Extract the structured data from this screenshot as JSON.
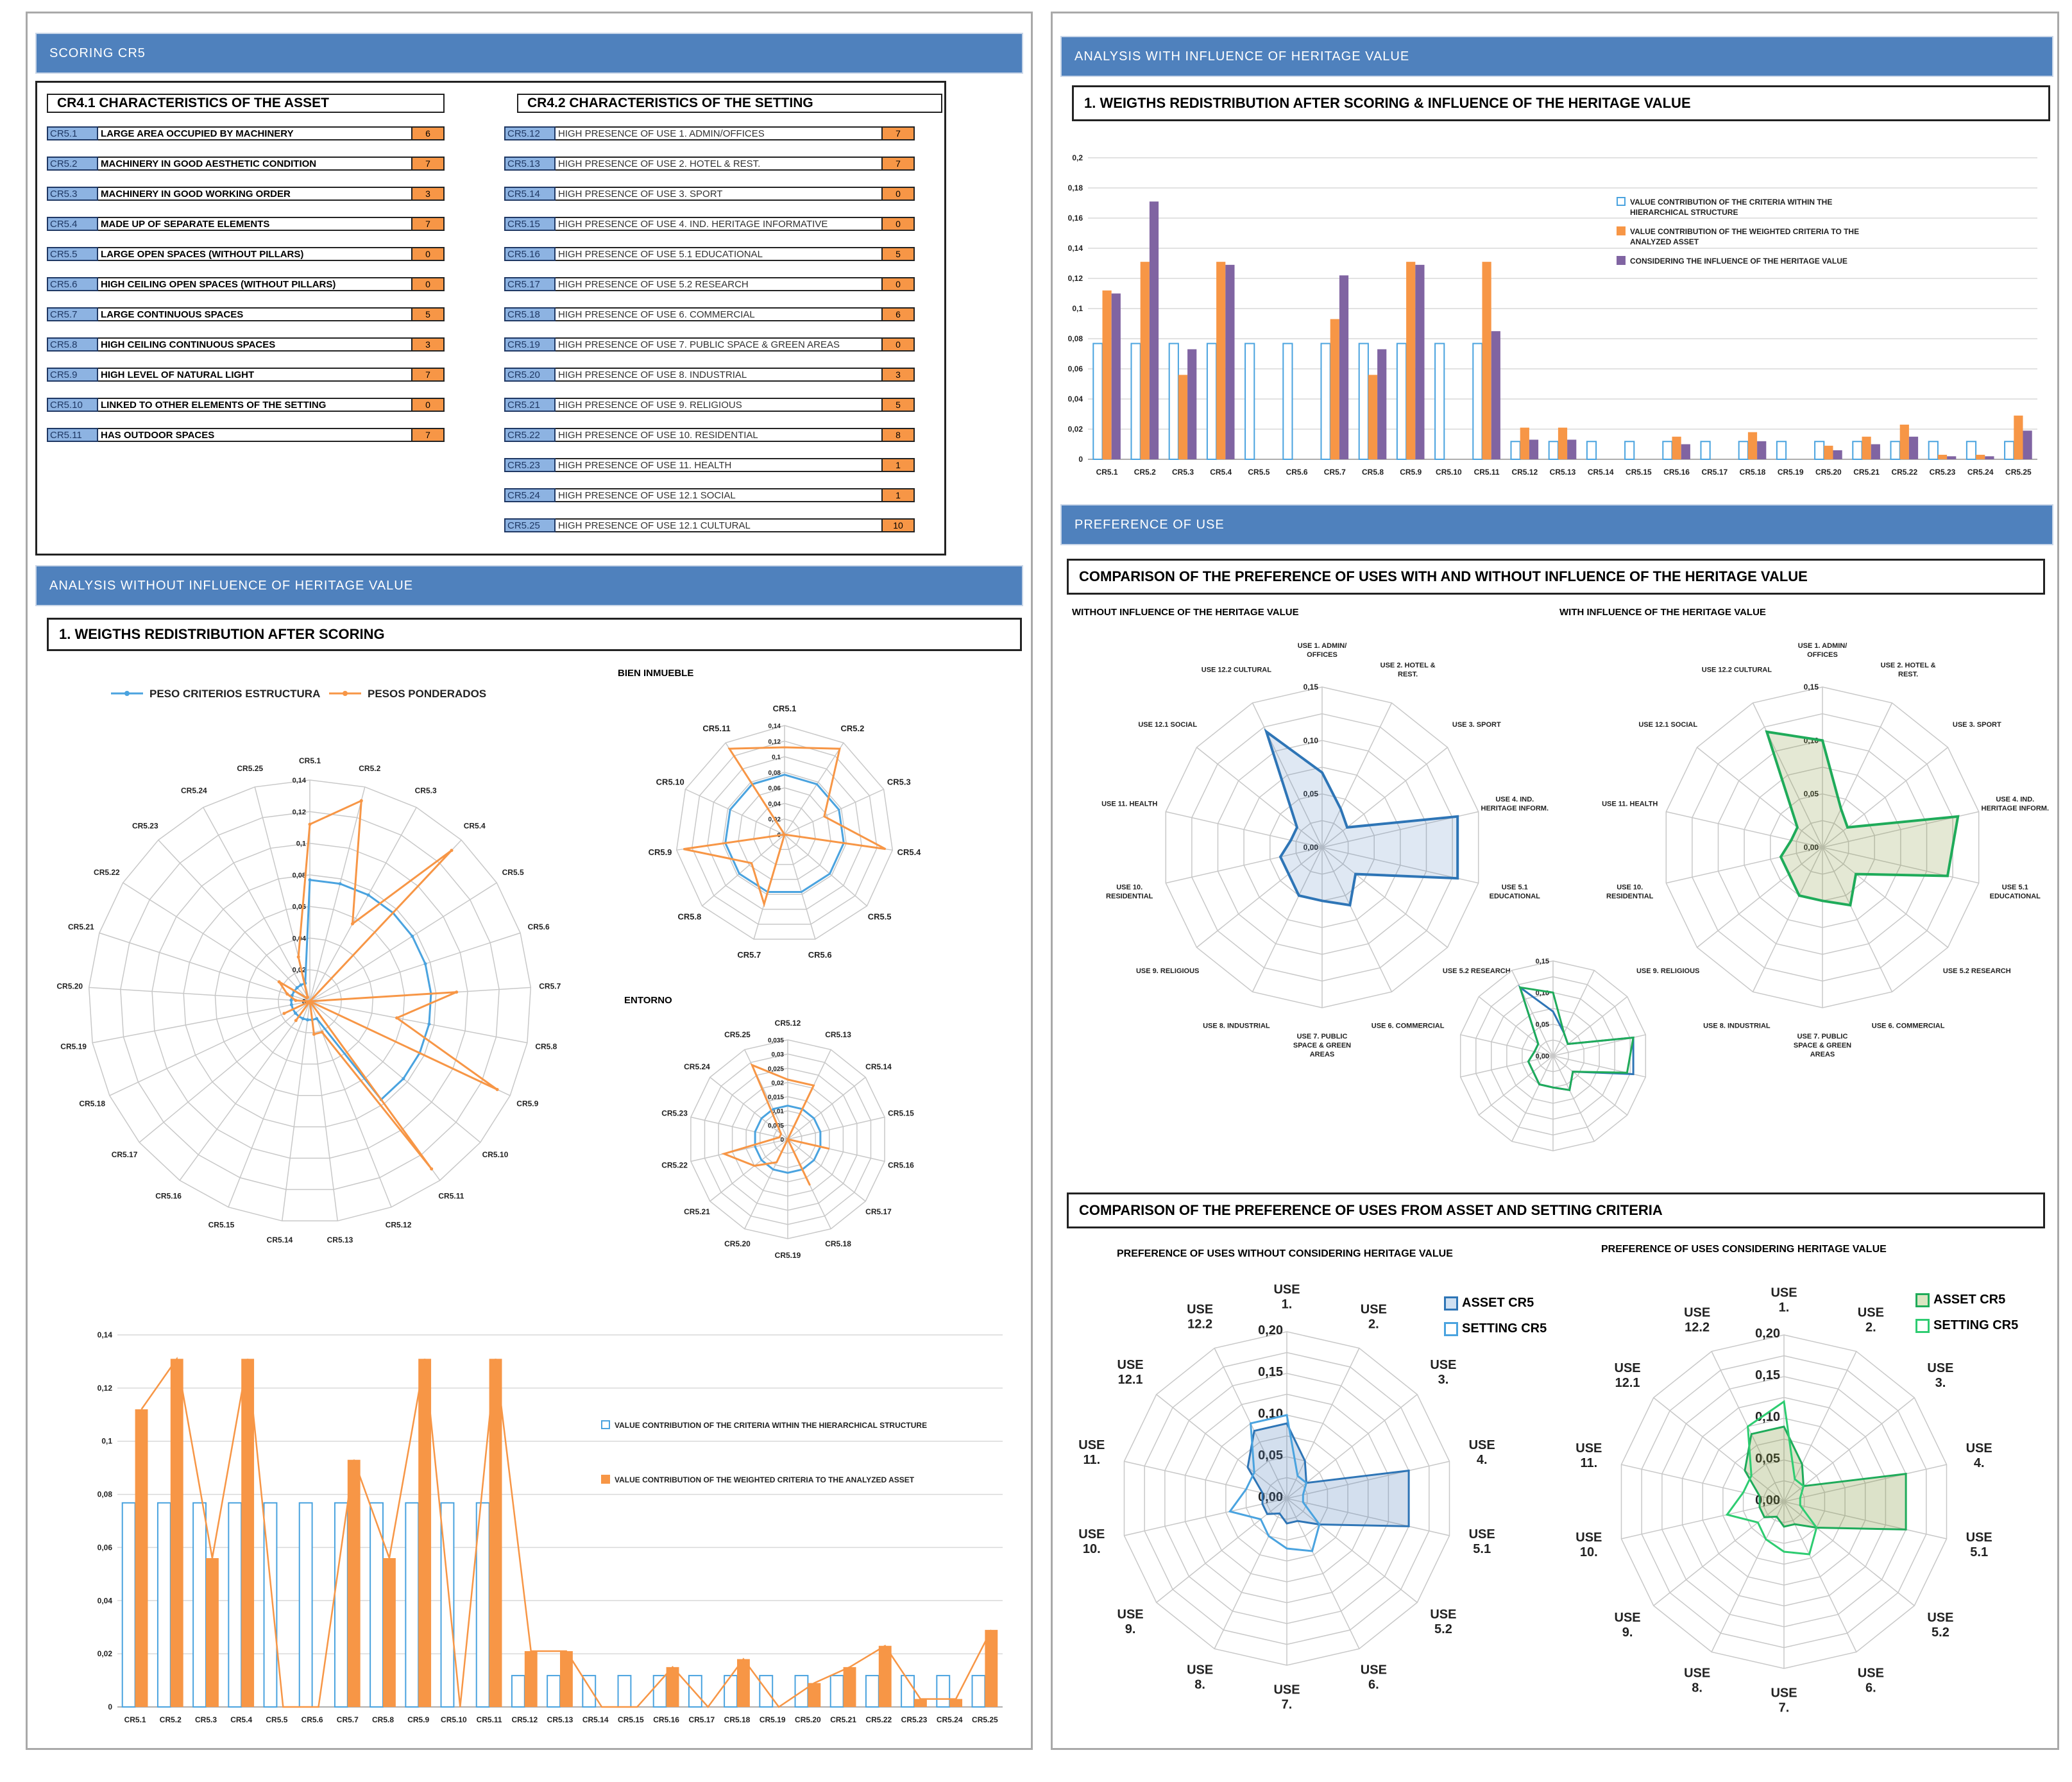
{
  "left": {
    "scoring_header": "SCORING CR5",
    "asset_title": "CR4.1  CHARACTERISTICS OF THE ASSET",
    "setting_title": "CR4.2  CHARACTERISTICS OF THE SETTING",
    "asset_rows": [
      {
        "code": "CR5.1",
        "label": "LARGE AREA OCCUPIED BY MACHINERY",
        "value": "6"
      },
      {
        "code": "CR5.2",
        "label": "MACHINERY IN GOOD AESTHETIC CONDITION",
        "value": "7"
      },
      {
        "code": "CR5.3",
        "label": "MACHINERY IN GOOD WORKING ORDER",
        "value": "3"
      },
      {
        "code": "CR5.4",
        "label": "MADE UP OF SEPARATE ELEMENTS",
        "value": "7"
      },
      {
        "code": "CR5.5",
        "label": "LARGE OPEN SPACES (WITHOUT PILLARS)",
        "value": "0"
      },
      {
        "code": "CR5.6",
        "label": "HIGH CEILING OPEN SPACES (WITHOUT PILLARS)",
        "value": "0"
      },
      {
        "code": "CR5.7",
        "label": "LARGE CONTINUOUS SPACES",
        "value": "5"
      },
      {
        "code": "CR5.8",
        "label": "HIGH CEILING CONTINUOUS SPACES",
        "value": "3"
      },
      {
        "code": "CR5.9",
        "label": "HIGH LEVEL OF NATURAL LIGHT",
        "value": "7"
      },
      {
        "code": "CR5.10",
        "label": "LINKED TO OTHER ELEMENTS OF THE SETTING",
        "value": "0"
      },
      {
        "code": "CR5.11",
        "label": "HAS OUTDOOR SPACES",
        "value": "7"
      }
    ],
    "setting_rows": [
      {
        "code": "CR5.12",
        "label": "HIGH PRESENCE OF USE 1. ADMIN/OFFICES",
        "value": "7"
      },
      {
        "code": "CR5.13",
        "label": "HIGH PRESENCE OF USE 2. HOTEL & REST.",
        "value": "7"
      },
      {
        "code": "CR5.14",
        "label": "HIGH PRESENCE OF USE 3. SPORT",
        "value": "0"
      },
      {
        "code": "CR5.15",
        "label": "HIGH PRESENCE OF USE 4. IND. HERITAGE INFORMATIVE",
        "value": "0"
      },
      {
        "code": "CR5.16",
        "label": "HIGH PRESENCE OF USE  5.1 EDUCATIONAL",
        "value": "5"
      },
      {
        "code": "CR5.17",
        "label": "HIGH PRESENCE OF USE  5.2 RESEARCH",
        "value": "0"
      },
      {
        "code": "CR5.18",
        "label": "HIGH PRESENCE OF USE 6. COMMERCIAL",
        "value": "6"
      },
      {
        "code": "CR5.19",
        "label": "HIGH PRESENCE OF USE 7. PUBLIC SPACE & GREEN AREAS",
        "value": "0"
      },
      {
        "code": "CR5.20",
        "label": "HIGH PRESENCE OF USE 8. INDUSTRIAL",
        "value": "3"
      },
      {
        "code": "CR5.21",
        "label": "HIGH PRESENCE OF USE  9. RELIGIOUS",
        "value": "5"
      },
      {
        "code": "CR5.22",
        "label": "HIGH PRESENCE OF USE 10. RESIDENTIAL",
        "value": "8"
      },
      {
        "code": "CR5.23",
        "label": "HIGH PRESENCE OF USE 11. HEALTH",
        "value": "1"
      },
      {
        "code": "CR5.24",
        "label": "HIGH PRESENCE OF USE 12.1  SOCIAL",
        "value": "1"
      },
      {
        "code": "CR5.25",
        "label": "HIGH PRESENCE OF USE 12.1 CULTURAL",
        "value": "10"
      }
    ],
    "analysis_header": "ANALYSIS WITHOUT  INFLUENCE OF HERITAGE VALUE",
    "weights_title": "1. WEIGTHS REDISTRIBUTION AFTER SCORING",
    "radar_legend": [
      "PESO CRITERIOS ESTRUCTURA",
      "PESOS PONDERADOS"
    ],
    "bien_title": "BIEN INMUEBLE",
    "entorno_title": "ENTORNO",
    "bar_legend": [
      "VALUE CONTRIBUTION OF THE CRITERIA WITHIN THE HIERARCHICAL STRUCTURE",
      "VALUE CONTRIBUTION OF THE WEIGHTED CRITERIA TO THE ANALYZED ASSET"
    ]
  },
  "right": {
    "analysis_header": "ANALYSIS WITH INFLUENCE OF HERITAGE VALUE",
    "weights_title": "1. WEIGTHS REDISTRIBUTION AFTER SCORING & INFLUENCE OF THE HERITAGE VALUE",
    "bar_legend": [
      "VALUE CONTRIBUTION OF THE CRITERIA WITHIN THE HIERARCHICAL STRUCTURE",
      "VALUE CONTRIBUTION OF THE WEIGHTED CRITERIA TO THE ANALYZED ASSET",
      "CONSIDERING THE INFLUENCE OF THE HERITAGE VALUE"
    ],
    "preference_header": "PREFERENCE OF USE",
    "comparison1_title": "COMPARISON OF THE PREFERENCE OF USES WITH AND WITHOUT INFLUENCE OF THE HERITAGE VALUE",
    "without_title": "WITHOUT INFLUENCE OF THE HERITAGE VALUE",
    "with_title": "WITH INFLUENCE OF THE HERITAGE VALUE",
    "comparison2_title": "COMPARISON OF THE PREFERENCE OF USES FROM ASSET AND SETTING CRITERIA",
    "pref_without_title": "PREFERENCE OF USES WITHOUT CONSIDERING HERITAGE VALUE",
    "pref_with_title": "PREFERENCE OF USES CONSIDERING HERITAGE VALUE",
    "legend_asset": "ASSET CR5",
    "legend_setting": "SETTING CR5"
  },
  "chart_data": [
    {
      "type": "radar",
      "id": "radar-main",
      "categories": [
        "CR5.1",
        "CR5.2",
        "CR5.3",
        "CR5.4",
        "CR5.5",
        "CR5.6",
        "CR5.7",
        "CR5.8",
        "CR5.9",
        "CR5.10",
        "CR5.11",
        "CR5.12",
        "CR5.13",
        "CR5.14",
        "CR5.15",
        "CR5.16",
        "CR5.17",
        "CR5.18",
        "CR5.19",
        "CR5.20",
        "CR5.21",
        "CR5.22",
        "CR5.23",
        "CR5.24",
        "CR5.25"
      ],
      "ticks": [
        "0",
        "0,02",
        "0,04",
        "0,06",
        "0,08",
        "0,1",
        "0,12",
        "0,14"
      ],
      "rmax": 0.14,
      "series": [
        {
          "name": "PESO CRITERIOS ESTRUCTURA",
          "color": "#4aa3df",
          "values": [
            0.0768,
            0.0768,
            0.0768,
            0.0768,
            0.0768,
            0.0768,
            0.0768,
            0.0768,
            0.0768,
            0.0768,
            0.0768,
            0.0118,
            0.0118,
            0.0118,
            0.0118,
            0.0118,
            0.0118,
            0.0118,
            0.0118,
            0.0118,
            0.0118,
            0.0118,
            0.0118,
            0.0118,
            0.0118
          ]
        },
        {
          "name": "PESOS PONDERADOS",
          "color": "#f79646",
          "values": [
            0.112,
            0.131,
            0.056,
            0.131,
            0,
            0,
            0.093,
            0.056,
            0.131,
            0,
            0.131,
            0.021,
            0.021,
            0,
            0,
            0.015,
            0,
            0.018,
            0,
            0.009,
            0.015,
            0.023,
            0.003,
            0.003,
            0.029
          ]
        }
      ]
    },
    {
      "type": "radar",
      "id": "radar-bien",
      "categories": [
        "CR5.1",
        "CR5.2",
        "CR5.3",
        "CR5.4",
        "CR5.5",
        "CR5.6",
        "CR5.7",
        "CR5.8",
        "CR5.9",
        "CR5.10",
        "CR5.11"
      ],
      "ticks": [
        "0",
        "0,02",
        "0,04",
        "0,06",
        "0,08",
        "0,1",
        "0,12",
        "0,14"
      ],
      "rmax": 0.14,
      "series": [
        {
          "name": "PESO CRITERIOS ESTRUCTURA",
          "color": "#4aa3df",
          "values": [
            0.0768,
            0.0768,
            0.0768,
            0.0768,
            0.0768,
            0.0768,
            0.0768,
            0.0768,
            0.0768,
            0.0768,
            0.0768
          ]
        },
        {
          "name": "PESOS PONDERADOS",
          "color": "#f79646",
          "values": [
            0.112,
            0.131,
            0.056,
            0.131,
            0,
            0,
            0.093,
            0.056,
            0.131,
            0,
            0.131
          ]
        }
      ]
    },
    {
      "type": "radar",
      "id": "radar-entorno",
      "categories": [
        "CR5.12",
        "CR5.13",
        "CR5.14",
        "CR5.15",
        "CR5.16",
        "CR5.17",
        "CR5.18",
        "CR5.19",
        "CR5.20",
        "CR5.21",
        "CR5.22",
        "CR5.23",
        "CR5.24",
        "CR5.25"
      ],
      "ticks": [
        "0",
        "0,005",
        "0,01",
        "0,015",
        "0,02",
        "0,025",
        "0,03",
        "0,035"
      ],
      "rmax": 0.035,
      "series": [
        {
          "name": "PESO CRITERIOS ESTRUCTURA",
          "color": "#4aa3df",
          "values": [
            0.0118,
            0.0118,
            0.0118,
            0.0118,
            0.0118,
            0.0118,
            0.0118,
            0.0118,
            0.0118,
            0.0118,
            0.0118,
            0.0118,
            0.0118,
            0.0118
          ]
        },
        {
          "name": "PESOS PONDERADOS",
          "color": "#f79646",
          "values": [
            0.021,
            0.021,
            0,
            0,
            0.015,
            0,
            0.018,
            0,
            0.009,
            0.015,
            0.023,
            0.003,
            0.003,
            0.029
          ]
        }
      ]
    },
    {
      "type": "bar",
      "id": "bar-left",
      "categories": [
        "CR5.1",
        "CR5.2",
        "CR5.3",
        "CR5.4",
        "CR5.5",
        "CR5.6",
        "CR5.7",
        "CR5.8",
        "CR5.9",
        "CR5.10",
        "CR5.11",
        "CR5.12",
        "CR5.13",
        "CR5.14",
        "CR5.15",
        "CR5.16",
        "CR5.17",
        "CR5.18",
        "CR5.19",
        "CR5.20",
        "CR5.21",
        "CR5.22",
        "CR5.23",
        "CR5.24",
        "CR5.25"
      ],
      "ticks": [
        "0",
        "0,02",
        "0,04",
        "0,06",
        "0,08",
        "0,1",
        "0,12",
        "0,14"
      ],
      "ylim": [
        0,
        0.14
      ],
      "series": [
        {
          "name": "VALUE CONTRIBUTION OF THE CRITERIA WITHIN THE HIERARCHICAL STRUCTURE",
          "color": "#ffffff",
          "stroke": "#4aa3df",
          "values": [
            0.0768,
            0.0768,
            0.0768,
            0.0768,
            0.0768,
            0.0768,
            0.0768,
            0.0768,
            0.0768,
            0.0768,
            0.0768,
            0.0118,
            0.0118,
            0.0118,
            0.0118,
            0.0118,
            0.0118,
            0.0118,
            0.0118,
            0.0118,
            0.0118,
            0.0118,
            0.0118,
            0.0118,
            0.0118
          ]
        },
        {
          "name": "VALUE CONTRIBUTION OF THE WEIGHTED CRITERIA TO THE ANALYZED ASSET",
          "color": "#f79646",
          "values": [
            0.112,
            0.131,
            0.056,
            0.131,
            0,
            0,
            0.093,
            0.056,
            0.131,
            0,
            0.131,
            0.021,
            0.021,
            0,
            0,
            0.015,
            0,
            0.018,
            0,
            0.009,
            0.015,
            0.023,
            0.003,
            0.003,
            0.029
          ]
        }
      ]
    },
    {
      "type": "bar",
      "id": "bar-right",
      "categories": [
        "CR5.1",
        "CR5.2",
        "CR5.3",
        "CR5.4",
        "CR5.5",
        "CR5.6",
        "CR5.7",
        "CR5.8",
        "CR5.9",
        "CR5.10",
        "CR5.11",
        "CR5.12",
        "CR5.13",
        "CR5.14",
        "CR5.15",
        "CR5.16",
        "CR5.17",
        "CR5.18",
        "CR5.19",
        "CR5.20",
        "CR5.21",
        "CR5.22",
        "CR5.23",
        "CR5.24",
        "CR5.25"
      ],
      "ticks": [
        "0",
        "0,02",
        "0,04",
        "0,06",
        "0,08",
        "0,1",
        "0,12",
        "0,14",
        "0,16",
        "0,18",
        "0,2"
      ],
      "ylim": [
        0,
        0.2
      ],
      "series": [
        {
          "name": "VALUE CONTRIBUTION OF THE CRITERIA WITHIN THE HIERARCHICAL STRUCTURE",
          "color": "#ffffff",
          "stroke": "#4aa3df",
          "values": [
            0.0768,
            0.0768,
            0.0768,
            0.0768,
            0.0768,
            0.0768,
            0.0768,
            0.0768,
            0.0768,
            0.0768,
            0.0768,
            0.0118,
            0.0118,
            0.0118,
            0.0118,
            0.0118,
            0.0118,
            0.0118,
            0.0118,
            0.0118,
            0.0118,
            0.0118,
            0.0118,
            0.0118,
            0.0118
          ]
        },
        {
          "name": "VALUE CONTRIBUTION OF THE WEIGHTED CRITERIA TO THE ANALYZED ASSET",
          "color": "#f79646",
          "values": [
            0.112,
            0.131,
            0.056,
            0.131,
            0,
            0,
            0.093,
            0.056,
            0.131,
            0,
            0.131,
            0.021,
            0.021,
            0,
            0,
            0.015,
            0,
            0.018,
            0,
            0.009,
            0.015,
            0.023,
            0.003,
            0.003,
            0.029
          ]
        },
        {
          "name": "CONSIDERING THE INFLUENCE OF THE HERITAGE VALUE",
          "color": "#8064a2",
          "values": [
            0.11,
            0.171,
            0.073,
            0.129,
            0,
            0,
            0.122,
            0.073,
            0.129,
            0,
            0.085,
            0.013,
            0.013,
            0,
            0,
            0.01,
            0,
            0.012,
            0,
            0.006,
            0.01,
            0.015,
            0.002,
            0.002,
            0.019
          ]
        }
      ]
    },
    {
      "type": "radar",
      "id": "radar-use-without",
      "categories": [
        "USE 1. ADMIN/ OFFICES",
        "USE 2. HOTEL & REST.",
        "USE 3. SPORT",
        "USE 4. IND. HERITAGE INFORM.",
        "USE 5.1 EDUCATIONAL",
        "USE 5.2 RESEARCH",
        "USE 6. COMMERCIAL",
        "USE 7. PUBLIC SPACE & GREEN AREAS",
        "USE 8. INDUSTRIAL",
        "USE 9. RELIGIOUS",
        "USE 10. RESIDENTIAL",
        "USE 11. HEALTH",
        "USE 12.1 SOCIAL",
        "USE 12.2 CULTURAL"
      ],
      "ticks": [
        "0,00",
        "0,05",
        "0,10",
        "0,15"
      ],
      "rmax": 0.15,
      "series": [
        {
          "name": "",
          "color": "#2e75b6",
          "fill": "rgba(79,129,189,0.18)",
          "values": [
            0.07,
            0.04,
            0.03,
            0.13,
            0.13,
            0.04,
            0.06,
            0.05,
            0.05,
            0.04,
            0.04,
            0.03,
            0.03,
            0.12
          ]
        }
      ]
    },
    {
      "type": "radar",
      "id": "radar-use-with",
      "categories": [
        "USE 1. ADMIN/ OFFICES",
        "USE 2. HOTEL & REST.",
        "USE 3. SPORT",
        "USE 4. IND. HERITAGE INFORM.",
        "USE 5.1 EDUCATIONAL",
        "USE 5.2 RESEARCH",
        "USE 6. COMMERCIAL",
        "USE 7. PUBLIC SPACE & GREEN AREAS",
        "USE 8. INDUSTRIAL",
        "USE 9. RELIGIOUS",
        "USE 10. RESIDENTIAL",
        "USE 11. HEALTH",
        "USE 12.1 SOCIAL",
        "USE 12.2 CULTURAL"
      ],
      "ticks": [
        "0,00",
        "0,05",
        "0,10",
        "0,15"
      ],
      "rmax": 0.15,
      "series": [
        {
          "name": "",
          "color": "#1fab5a",
          "fill": "rgba(130,150,60,0.22)",
          "values": [
            0.1,
            0.04,
            0.03,
            0.13,
            0.12,
            0.04,
            0.06,
            0.05,
            0.05,
            0.04,
            0.04,
            0.03,
            0.03,
            0.12
          ]
        }
      ]
    },
    {
      "type": "radar",
      "id": "radar-use-overlay",
      "categories": [
        "",
        "",
        "",
        "",
        "",
        "",
        "",
        "",
        "",
        "",
        "",
        "",
        "",
        ""
      ],
      "ticks": [
        "0,00",
        "0,05",
        "0,10",
        "0,15"
      ],
      "rmax": 0.15,
      "series": [
        {
          "name": "",
          "color": "#2e75b6",
          "values": [
            0.07,
            0.04,
            0.03,
            0.13,
            0.13,
            0.04,
            0.06,
            0.05,
            0.05,
            0.04,
            0.04,
            0.03,
            0.03,
            0.12
          ]
        },
        {
          "name": "",
          "color": "#1fab5a",
          "values": [
            0.1,
            0.04,
            0.03,
            0.13,
            0.12,
            0.04,
            0.06,
            0.05,
            0.05,
            0.04,
            0.04,
            0.03,
            0.03,
            0.12
          ]
        }
      ]
    },
    {
      "type": "radar",
      "id": "radar-pref-without",
      "categories": [
        "USE 1.",
        "USE 2.",
        "USE 3.",
        "USE 4.",
        "USE 5.1",
        "USE 5.2",
        "USE 6.",
        "USE 7.",
        "USE 8.",
        "USE 9.",
        "USE 10.",
        "USE 11.",
        "USE 12.1",
        "USE 12.2"
      ],
      "ticks": [
        "0,00",
        "0,05",
        "0,10",
        "0,15",
        "0,20"
      ],
      "rmax": 0.2,
      "series": [
        {
          "name": "ASSET CR5",
          "color": "#2e75b6",
          "fill": "rgba(79,129,189,0.25)",
          "values": [
            0.09,
            0.05,
            0.03,
            0.15,
            0.15,
            0.05,
            0.03,
            0.03,
            0.02,
            0.03,
            0.03,
            0.03,
            0.06,
            0.09
          ]
        },
        {
          "name": "SETTING CR5",
          "color": "#4aa3df",
          "values": [
            0.1,
            0.03,
            0.03,
            0.02,
            0.02,
            0.05,
            0.07,
            0.06,
            0.05,
            0.04,
            0.07,
            0.05,
            0.05,
            0.1
          ]
        }
      ]
    },
    {
      "type": "radar",
      "id": "radar-pref-with",
      "categories": [
        "USE 1.",
        "USE 2.",
        "USE 3.",
        "USE 4.",
        "USE 5.1",
        "USE 5.2",
        "USE 6.",
        "USE 7.",
        "USE 8.",
        "USE 9.",
        "USE 10.",
        "USE 11.",
        "USE 12.1",
        "USE 12.2"
      ],
      "ticks": [
        "0,00",
        "0,05",
        "0,10",
        "0,15",
        "0,20"
      ],
      "rmax": 0.2,
      "series": [
        {
          "name": "ASSET CR5",
          "color": "#1fab5a",
          "fill": "rgba(130,150,60,0.28)",
          "values": [
            0.09,
            0.05,
            0.03,
            0.15,
            0.15,
            0.05,
            0.03,
            0.03,
            0.02,
            0.03,
            0.03,
            0.03,
            0.06,
            0.09
          ]
        },
        {
          "name": "SETTING CR5",
          "color": "#2ecc71",
          "values": [
            0.12,
            0.03,
            0.03,
            0.02,
            0.02,
            0.05,
            0.07,
            0.06,
            0.05,
            0.04,
            0.07,
            0.05,
            0.05,
            0.1
          ]
        }
      ]
    }
  ]
}
